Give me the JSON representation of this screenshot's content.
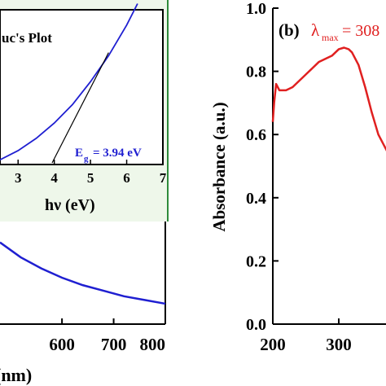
{
  "colors": {
    "blue_curve": "#1f1fd1",
    "red_curve": "#e02020",
    "inset_border": "#2e8b3a",
    "inset_bg": "#eef7ea",
    "tangent": "#000000"
  },
  "chart_data": [
    {
      "type": "line",
      "panel": "a",
      "xlabel": "(nm)",
      "x_ticks": [
        "600",
        "700",
        "800"
      ],
      "xlim": [
        480,
        800
      ],
      "series": [
        {
          "x": [
            480,
            520,
            560,
            600,
            640,
            680,
            720,
            760,
            800
          ],
          "y": [
            0.44,
            0.36,
            0.3,
            0.25,
            0.21,
            0.18,
            0.15,
            0.13,
            0.11
          ]
        }
      ],
      "inset": {
        "title": "uc's Plot",
        "xlabel": "hν (eV)",
        "x_ticks": [
          "3",
          "4",
          "5",
          "6",
          "7"
        ],
        "xlim": [
          2.5,
          7
        ],
        "annotation": "E",
        "annotation_sub": "g",
        "annotation_value": "= 3.94 eV",
        "series": [
          {
            "x": [
              2.5,
              3.0,
              3.5,
              4.0,
              4.5,
              5.0,
              5.5,
              6.0,
              6.3
            ],
            "y": [
              0.02,
              0.08,
              0.16,
              0.26,
              0.38,
              0.53,
              0.7,
              0.9,
              1.04
            ]
          }
        ],
        "tangent": {
          "x": [
            3.94,
            5.5
          ],
          "y": [
            0.0,
            0.72
          ]
        }
      }
    },
    {
      "type": "line",
      "panel": "b",
      "panel_label": "(b)",
      "ylabel": "Absorbance (a.u.)",
      "y_ticks": [
        "0.0",
        "0.2",
        "0.4",
        "0.6",
        "0.8",
        "1.0"
      ],
      "ylim": [
        0,
        1.0
      ],
      "x_ticks": [
        "200",
        "300"
      ],
      "xlim": [
        200,
        420
      ],
      "annotation_prefix": "λ",
      "annotation_sub": "max",
      "annotation_value": "= 308",
      "series": [
        {
          "x": [
            200,
            202,
            205,
            210,
            220,
            230,
            240,
            250,
            260,
            270,
            280,
            290,
            300,
            308,
            315,
            320,
            330,
            340,
            350,
            360,
            370,
            380
          ],
          "y": [
            0.64,
            0.7,
            0.76,
            0.74,
            0.74,
            0.75,
            0.77,
            0.79,
            0.81,
            0.83,
            0.84,
            0.85,
            0.87,
            0.875,
            0.87,
            0.86,
            0.82,
            0.75,
            0.67,
            0.6,
            0.56,
            0.52
          ]
        }
      ]
    }
  ]
}
